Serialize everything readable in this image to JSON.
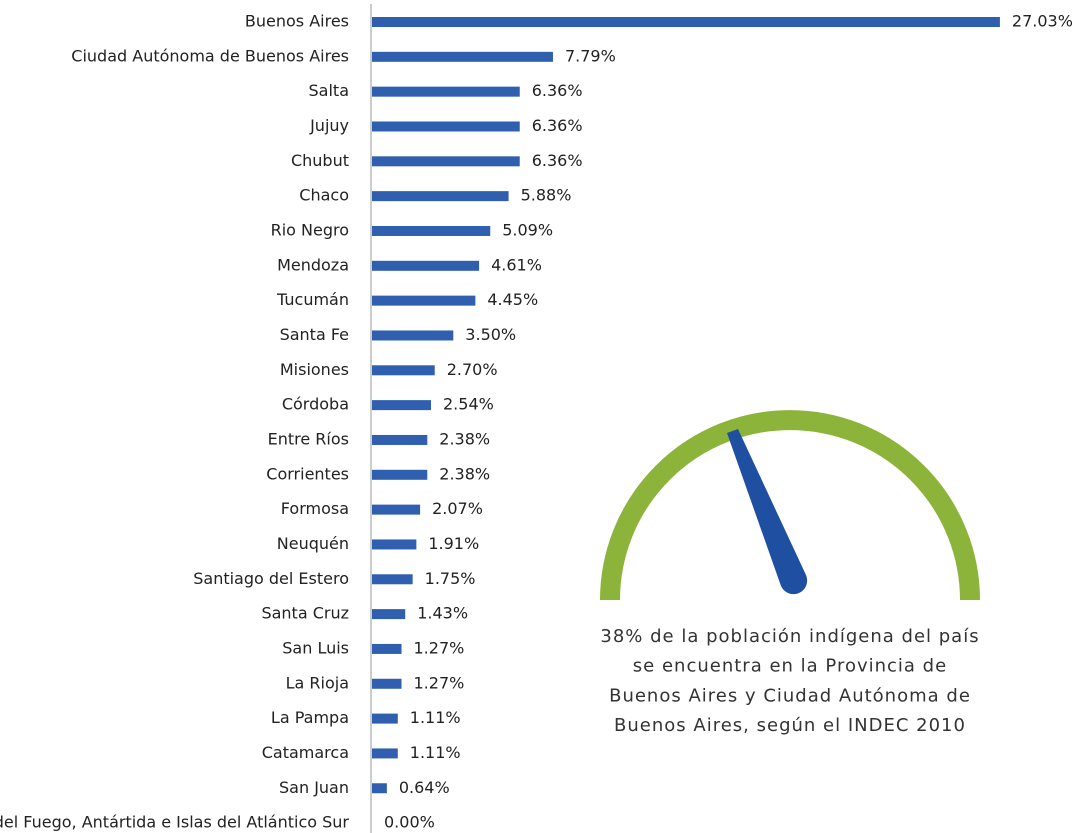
{
  "chart_data": {
    "type": "bar",
    "orientation": "horizontal",
    "color": "#2f5fae",
    "categories": [
      "Buenos Aires",
      "Ciudad Autónoma de Buenos Aires",
      "Salta",
      "Jujuy",
      "Chubut",
      "Chaco",
      "Rio Negro",
      "Mendoza",
      "Tucumán",
      "Santa Fe",
      "Misiones",
      "Córdoba",
      "Entre Ríos",
      "Corrientes",
      "Formosa",
      "Neuquén",
      "Santiago del Estero",
      "Santa Cruz",
      "San Luis",
      "La Rioja",
      "La Pampa",
      "Catamarca",
      "San Juan",
      "Tierra del Fuego, Antártida e Islas del Atlántico Sur"
    ],
    "values": [
      27.03,
      7.79,
      6.36,
      6.36,
      6.36,
      5.88,
      5.09,
      4.61,
      4.45,
      3.5,
      2.7,
      2.54,
      2.38,
      2.38,
      2.07,
      1.91,
      1.75,
      1.43,
      1.27,
      1.27,
      1.11,
      1.11,
      0.64,
      0
    ],
    "value_labels": [
      "27.03%",
      "7.79%",
      "6.36%",
      "6.36%",
      "6.36%",
      "5.88%",
      "5.09%",
      "4.61%",
      "4.45%",
      "3.50%",
      "2.70%",
      "2.54%",
      "2.38%",
      "2.38%",
      "2.07%",
      "1.91%",
      "1.75%",
      "1.43%",
      "1.27%",
      "1.27%",
      "1.11%",
      "1.11%",
      "0.64%",
      "0.00%"
    ],
    "annotation": [
      "38% de la población indígena del país",
      "se encuentra en la Provincia de",
      "Buenos Aires y Ciudad Autónoma de",
      "Buenos Aires, según el INDEC 2010"
    ]
  }
}
